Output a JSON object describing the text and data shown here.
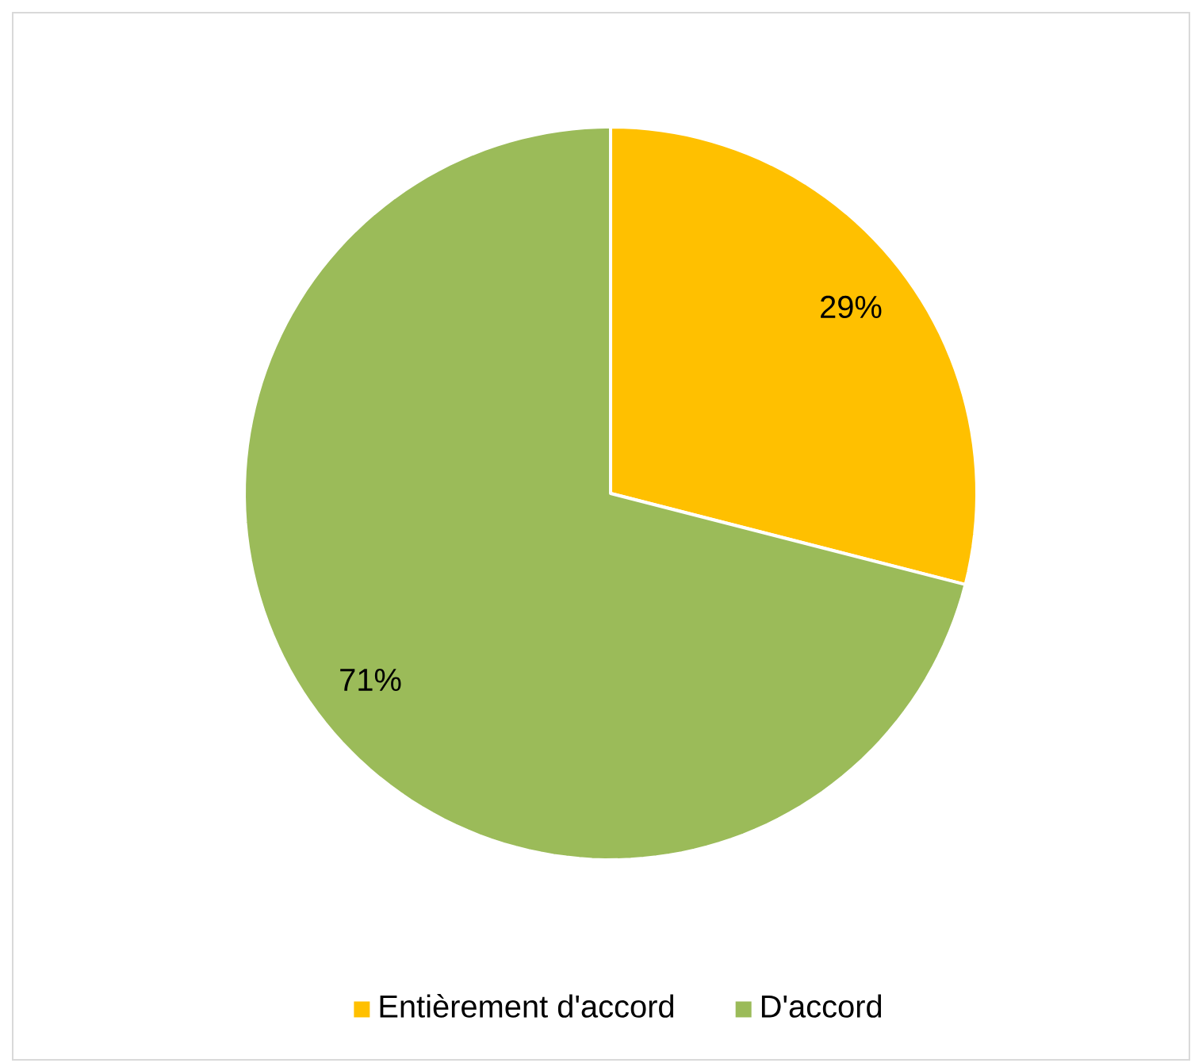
{
  "chart_data": {
    "type": "pie",
    "categories": [
      "Entièrement d'accord",
      "D'accord"
    ],
    "values": [
      29,
      71
    ],
    "value_labels": [
      "29%",
      "71%"
    ],
    "colors": [
      "#ffc000",
      "#9bbb59"
    ],
    "legend": "bottom"
  }
}
